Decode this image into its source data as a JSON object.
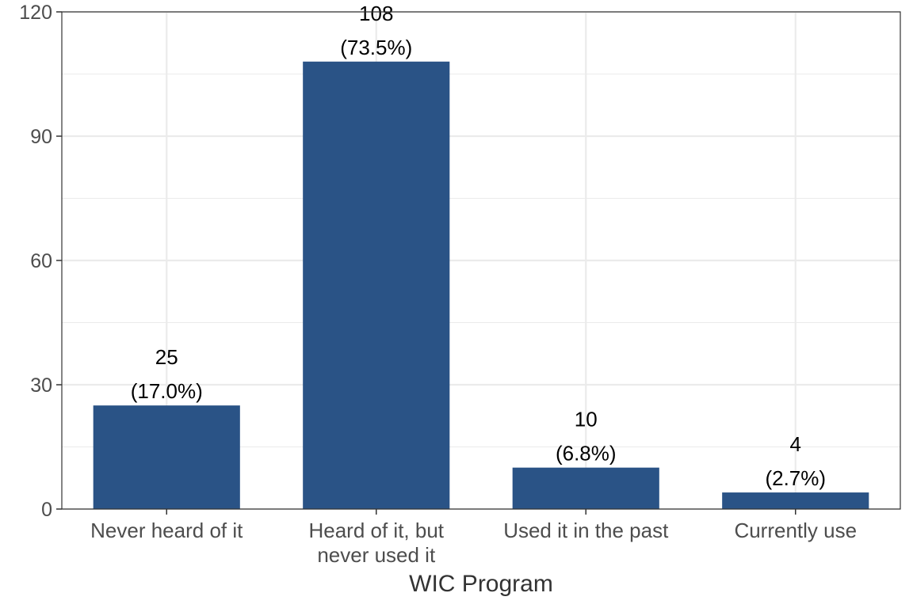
{
  "chart_data": {
    "type": "bar",
    "categories": [
      "Never heard of it",
      "Heard of it, but\nnever used it",
      "Used it in the past",
      "Currently use"
    ],
    "values": [
      25,
      108,
      10,
      4
    ],
    "percent_labels": [
      "(17.0%)",
      "(73.5%)",
      "(6.8%)",
      "(2.7%)"
    ],
    "title": "",
    "xlabel": "WIC Program",
    "ylabel": "",
    "ylim": [
      0,
      120
    ],
    "yticks": [
      0,
      30,
      60,
      90,
      120
    ],
    "grid": true,
    "legend": "none"
  },
  "colors": {
    "bar": "#2a5386",
    "grid": "#ebebeb",
    "panel_border": "#333333",
    "axis_tick": "#333333"
  }
}
